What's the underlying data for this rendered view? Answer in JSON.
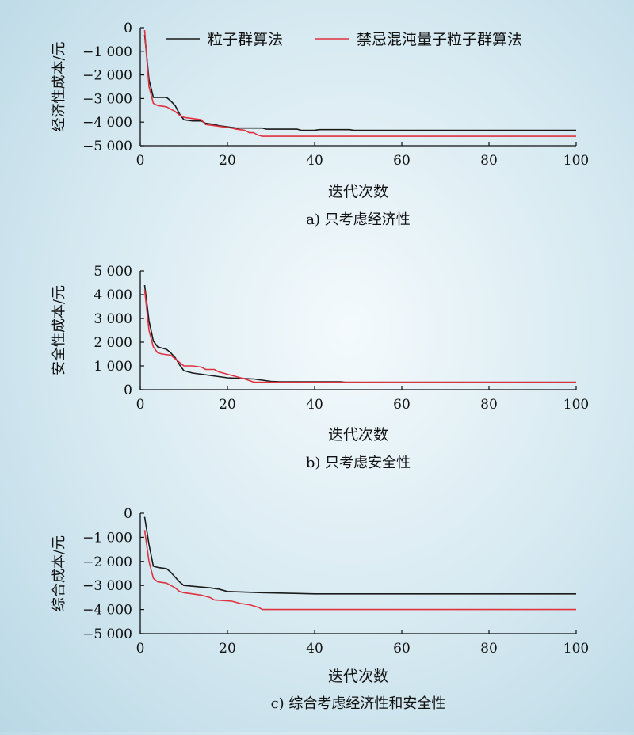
{
  "legend": [
    "粒子群算法",
    "禁忌混沌量子粒子群算法"
  ],
  "colors": {
    "pso": "#1a1a1a",
    "tcqpso": "#e0323e",
    "axis": "#111111"
  },
  "chart_data": [
    {
      "type": "line",
      "xlabel": "迭代次数",
      "ylabel": "经济性成本/元",
      "caption": "a) 只考虑经济性",
      "xlim": [
        0,
        100
      ],
      "ylim": [
        -5000,
        0
      ],
      "xticks": [
        {
          "v": 0,
          "label": "0"
        },
        {
          "v": 20,
          "label": "20"
        },
        {
          "v": 40,
          "label": "40"
        },
        {
          "v": 60,
          "label": "60"
        },
        {
          "v": 80,
          "label": "80"
        },
        {
          "v": 100,
          "label": "100"
        }
      ],
      "yticks": [
        {
          "v": 0,
          "label": "0"
        },
        {
          "v": -1000,
          "label": "−1 000"
        },
        {
          "v": -2000,
          "label": "−2 000"
        },
        {
          "v": -3000,
          "label": "−3 000"
        },
        {
          "v": -4000,
          "label": "−4 000"
        },
        {
          "v": -5000,
          "label": "−5 000"
        }
      ],
      "legend": true,
      "series": [
        {
          "name": "粒子群算法",
          "key": "pso",
          "points": [
            [
              1,
              -300
            ],
            [
              2,
              -2200
            ],
            [
              3,
              -2950
            ],
            [
              4,
              -2950
            ],
            [
              5,
              -2950
            ],
            [
              6,
              -2950
            ],
            [
              7,
              -3100
            ],
            [
              8,
              -3300
            ],
            [
              9,
              -3650
            ],
            [
              10,
              -3900
            ],
            [
              12,
              -3950
            ],
            [
              14,
              -3950
            ],
            [
              15,
              -4050
            ],
            [
              17,
              -4100
            ],
            [
              18,
              -4150
            ],
            [
              20,
              -4200
            ],
            [
              22,
              -4250
            ],
            [
              28,
              -4250
            ],
            [
              29,
              -4300
            ],
            [
              36,
              -4300
            ],
            [
              37,
              -4350
            ],
            [
              40,
              -4350
            ],
            [
              41,
              -4320
            ],
            [
              48,
              -4320
            ],
            [
              49,
              -4350
            ],
            [
              100,
              -4350
            ]
          ]
        },
        {
          "name": "禁忌混沌量子粒子群算法",
          "key": "tcqpso",
          "points": [
            [
              1,
              -100
            ],
            [
              2,
              -2500
            ],
            [
              3,
              -3200
            ],
            [
              4,
              -3300
            ],
            [
              6,
              -3350
            ],
            [
              7,
              -3450
            ],
            [
              8,
              -3550
            ],
            [
              9,
              -3700
            ],
            [
              10,
              -3800
            ],
            [
              12,
              -3850
            ],
            [
              14,
              -3900
            ],
            [
              15,
              -4100
            ],
            [
              17,
              -4150
            ],
            [
              19,
              -4200
            ],
            [
              21,
              -4250
            ],
            [
              22,
              -4300
            ],
            [
              24,
              -4350
            ],
            [
              25,
              -4450
            ],
            [
              26,
              -4450
            ],
            [
              27,
              -4550
            ],
            [
              28,
              -4600
            ],
            [
              100,
              -4600
            ]
          ]
        }
      ]
    },
    {
      "type": "line",
      "xlabel": "迭代次数",
      "ylabel": "安全性成本/元",
      "caption": "b) 只考虑安全性",
      "xlim": [
        0,
        100
      ],
      "ylim": [
        0,
        5000
      ],
      "xticks": [
        {
          "v": 0,
          "label": "0"
        },
        {
          "v": 20,
          "label": "20"
        },
        {
          "v": 40,
          "label": "40"
        },
        {
          "v": 60,
          "label": "60"
        },
        {
          "v": 80,
          "label": "80"
        },
        {
          "v": 100,
          "label": "100"
        }
      ],
      "yticks": [
        {
          "v": 0,
          "label": "0"
        },
        {
          "v": 1000,
          "label": "1 000"
        },
        {
          "v": 2000,
          "label": "2 000"
        },
        {
          "v": 3000,
          "label": "3 000"
        },
        {
          "v": 4000,
          "label": "4 000"
        },
        {
          "v": 5000,
          "label": "5 000"
        }
      ],
      "legend": false,
      "series": [
        {
          "name": "粒子群算法",
          "key": "pso",
          "points": [
            [
              1,
              4400
            ],
            [
              2,
              2900
            ],
            [
              3,
              2050
            ],
            [
              4,
              1800
            ],
            [
              5,
              1750
            ],
            [
              6,
              1700
            ],
            [
              7,
              1550
            ],
            [
              8,
              1350
            ],
            [
              9,
              1050
            ],
            [
              10,
              800
            ],
            [
              11,
              750
            ],
            [
              12,
              700
            ],
            [
              14,
              650
            ],
            [
              16,
              600
            ],
            [
              18,
              550
            ],
            [
              20,
              500
            ],
            [
              22,
              480
            ],
            [
              26,
              450
            ],
            [
              28,
              400
            ],
            [
              30,
              350
            ],
            [
              32,
              330
            ],
            [
              46,
              330
            ],
            [
              47,
              310
            ],
            [
              100,
              310
            ]
          ]
        },
        {
          "name": "禁忌混沌量子粒子群算法",
          "key": "tcqpso",
          "points": [
            [
              1,
              4200
            ],
            [
              2,
              2500
            ],
            [
              3,
              1800
            ],
            [
              4,
              1550
            ],
            [
              5,
              1500
            ],
            [
              7,
              1450
            ],
            [
              8,
              1300
            ],
            [
              9,
              1150
            ],
            [
              10,
              1000
            ],
            [
              12,
              1000
            ],
            [
              14,
              950
            ],
            [
              15,
              850
            ],
            [
              17,
              850
            ],
            [
              18,
              750
            ],
            [
              20,
              650
            ],
            [
              22,
              550
            ],
            [
              24,
              450
            ],
            [
              26,
              320
            ],
            [
              30,
              310
            ],
            [
              100,
              310
            ]
          ]
        }
      ]
    },
    {
      "type": "line",
      "xlabel": "迭代次数",
      "ylabel": "综合成本/元",
      "caption": "c) 综合考虑经济性和安全性",
      "xlim": [
        0,
        100
      ],
      "ylim": [
        -5000,
        0
      ],
      "xticks": [
        {
          "v": 0,
          "label": "0"
        },
        {
          "v": 20,
          "label": "20"
        },
        {
          "v": 40,
          "label": "40"
        },
        {
          "v": 60,
          "label": "60"
        },
        {
          "v": 80,
          "label": "80"
        },
        {
          "v": 100,
          "label": "100"
        }
      ],
      "yticks": [
        {
          "v": 0,
          "label": "0"
        },
        {
          "v": -1000,
          "label": "−1 000"
        },
        {
          "v": -2000,
          "label": "−2 000"
        },
        {
          "v": -3000,
          "label": "−3 000"
        },
        {
          "v": -4000,
          "label": "−4 000"
        },
        {
          "v": -5000,
          "label": "−5 000"
        }
      ],
      "legend": false,
      "series": [
        {
          "name": "粒子群算法",
          "key": "pso",
          "points": [
            [
              1,
              -150
            ],
            [
              2,
              -1300
            ],
            [
              3,
              -2200
            ],
            [
              4,
              -2250
            ],
            [
              6,
              -2300
            ],
            [
              7,
              -2450
            ],
            [
              8,
              -2650
            ],
            [
              9,
              -2850
            ],
            [
              10,
              -3000
            ],
            [
              13,
              -3050
            ],
            [
              16,
              -3100
            ],
            [
              18,
              -3150
            ],
            [
              20,
              -3250
            ],
            [
              28,
              -3300
            ],
            [
              40,
              -3350
            ],
            [
              100,
              -3350
            ]
          ]
        },
        {
          "name": "禁忌混沌量子粒子群算法",
          "key": "tcqpso",
          "points": [
            [
              1,
              -700
            ],
            [
              2,
              -2000
            ],
            [
              3,
              -2700
            ],
            [
              4,
              -2850
            ],
            [
              6,
              -2900
            ],
            [
              7,
              -3000
            ],
            [
              8,
              -3100
            ],
            [
              9,
              -3250
            ],
            [
              10,
              -3300
            ],
            [
              12,
              -3350
            ],
            [
              14,
              -3400
            ],
            [
              16,
              -3500
            ],
            [
              17,
              -3600
            ],
            [
              21,
              -3650
            ],
            [
              23,
              -3750
            ],
            [
              25,
              -3800
            ],
            [
              27,
              -3900
            ],
            [
              28,
              -4000
            ],
            [
              100,
              -4000
            ]
          ]
        }
      ]
    }
  ]
}
